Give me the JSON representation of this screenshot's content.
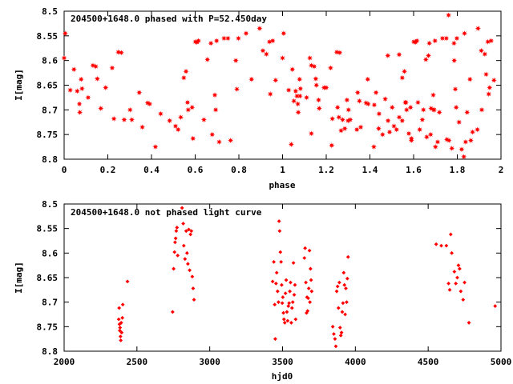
{
  "colors": {
    "points": "#ff0000",
    "axes": "#000000",
    "background": "#ffffff"
  },
  "chart_data": [
    {
      "type": "scatter",
      "title": "204500+1648.0 phased with P=52.450day",
      "xlabel": "phase",
      "ylabel": "I[mag]",
      "xlim": [
        0,
        2
      ],
      "ylim": [
        8.8,
        8.5
      ],
      "y_inverted": true,
      "grid": false,
      "marker": "star",
      "xticks": [
        "0",
        "0.2",
        "0.4",
        "0.6",
        "0.8",
        "1",
        "1.2",
        "1.4",
        "1.6",
        "1.8",
        "2"
      ],
      "yticks": [
        "8.5",
        "8.55",
        "8.6",
        "8.65",
        "8.7",
        "8.75",
        "8.8"
      ],
      "base_points": [
        [
          0.0,
          8.595
        ],
        [
          0.005,
          8.545
        ],
        [
          0.028,
          8.66
        ],
        [
          0.045,
          8.618
        ],
        [
          0.06,
          8.662
        ],
        [
          0.07,
          8.688
        ],
        [
          0.072,
          8.705
        ],
        [
          0.078,
          8.638
        ],
        [
          0.082,
          8.657
        ],
        [
          0.11,
          8.675
        ],
        [
          0.132,
          8.61
        ],
        [
          0.145,
          8.612
        ],
        [
          0.152,
          8.637
        ],
        [
          0.168,
          8.697
        ],
        [
          0.19,
          8.655
        ],
        [
          0.22,
          8.615
        ],
        [
          0.228,
          8.718
        ],
        [
          0.248,
          8.583
        ],
        [
          0.262,
          8.584
        ],
        [
          0.275,
          8.72
        ],
        [
          0.302,
          8.7
        ],
        [
          0.31,
          8.72
        ],
        [
          0.344,
          8.665
        ],
        [
          0.358,
          8.735
        ],
        [
          0.382,
          8.686
        ],
        [
          0.392,
          8.688
        ],
        [
          0.418,
          8.775
        ],
        [
          0.442,
          8.708
        ],
        [
          0.483,
          8.722
        ],
        [
          0.51,
          8.733
        ],
        [
          0.522,
          8.74
        ],
        [
          0.534,
          8.715
        ],
        [
          0.548,
          8.635
        ],
        [
          0.558,
          8.622
        ],
        [
          0.565,
          8.685
        ],
        [
          0.568,
          8.7
        ],
        [
          0.586,
          8.695
        ],
        [
          0.59,
          8.758
        ],
        [
          0.601,
          8.562
        ],
        [
          0.608,
          8.563
        ],
        [
          0.615,
          8.56
        ],
        [
          0.64,
          8.72
        ],
        [
          0.656,
          8.598
        ],
        [
          0.672,
          8.565
        ],
        [
          0.678,
          8.75
        ],
        [
          0.69,
          8.67
        ],
        [
          0.694,
          8.7
        ],
        [
          0.698,
          8.56
        ],
        [
          0.71,
          8.765
        ],
        [
          0.732,
          8.555
        ],
        [
          0.75,
          8.555
        ],
        [
          0.762,
          8.762
        ],
        [
          0.786,
          8.6
        ],
        [
          0.791,
          8.658
        ],
        [
          0.798,
          8.555
        ],
        [
          0.833,
          8.545
        ],
        [
          0.858,
          8.638
        ],
        [
          0.895,
          8.535
        ],
        [
          0.91,
          8.58
        ],
        [
          0.926,
          8.587
        ],
        [
          0.94,
          8.562
        ],
        [
          0.944,
          8.668
        ],
        [
          0.955,
          8.56
        ],
        [
          0.968,
          8.64
        ]
      ],
      "extra_points": [
        [
          1.04,
          8.77
        ],
        [
          1.052,
          8.682
        ],
        [
          1.066,
          8.672
        ],
        [
          1.08,
          8.672
        ],
        [
          1.125,
          8.595
        ],
        [
          1.132,
          8.748
        ],
        [
          1.155,
          8.65
        ],
        [
          1.165,
          8.68
        ],
        [
          1.2,
          8.655
        ],
        [
          1.225,
          8.772
        ],
        [
          1.252,
          8.695
        ],
        [
          1.258,
          8.715
        ],
        [
          1.268,
          8.742
        ],
        [
          1.285,
          8.738
        ],
        [
          1.295,
          8.68
        ],
        [
          1.3,
          8.722
        ],
        [
          1.34,
          8.74
        ],
        [
          1.352,
          8.682
        ],
        [
          1.39,
          8.638
        ],
        [
          1.42,
          8.69
        ],
        [
          1.428,
          8.665
        ],
        [
          1.44,
          8.738
        ],
        [
          1.458,
          8.75
        ],
        [
          1.47,
          8.678
        ],
        [
          1.482,
          8.59
        ],
        [
          1.49,
          8.745
        ],
        [
          1.502,
          8.695
        ],
        [
          1.534,
          8.588
        ],
        [
          1.548,
          8.722
        ],
        [
          1.562,
          8.685
        ],
        [
          1.578,
          8.748
        ],
        [
          1.59,
          8.762
        ],
        [
          1.62,
          8.685
        ],
        [
          1.628,
          8.74
        ],
        [
          1.645,
          8.7
        ],
        [
          1.66,
          8.755
        ],
        [
          1.668,
          8.59
        ],
        [
          1.68,
          8.697
        ],
        [
          1.692,
          8.7
        ],
        [
          1.7,
          8.775
        ],
        [
          1.718,
          8.705
        ],
        [
          1.752,
          8.76
        ],
        [
          1.76,
          8.508
        ],
        [
          1.775,
          8.778
        ],
        [
          1.785,
          8.565
        ],
        [
          1.795,
          8.695
        ],
        [
          1.808,
          8.725
        ],
        [
          1.82,
          8.78
        ],
        [
          1.83,
          8.795
        ],
        [
          1.838,
          8.765
        ],
        [
          1.845,
          8.705
        ],
        [
          1.862,
          8.762
        ],
        [
          1.87,
          8.745
        ],
        [
          1.892,
          8.74
        ],
        [
          1.912,
          8.7
        ],
        [
          1.932,
          8.628
        ],
        [
          1.948,
          8.655
        ]
      ]
    },
    {
      "type": "scatter",
      "title": "204500+1648.0 not phased light curve",
      "xlabel": "hjd0",
      "ylabel": "I[mag]",
      "xlim": [
        2000,
        5000
      ],
      "ylim": [
        8.8,
        8.5
      ],
      "y_inverted": true,
      "grid": false,
      "marker": "diamond",
      "xticks": [
        "2000",
        "2500",
        "3000",
        "3500",
        "4000",
        "4500",
        "5000"
      ],
      "yticks": [
        "8.5",
        "8.55",
        "8.6",
        "8.65",
        "8.7",
        "8.75",
        "8.8"
      ],
      "points": [
        [
          2375,
          8.735
        ],
        [
          2378,
          8.712
        ],
        [
          2380,
          8.745
        ],
        [
          2382,
          8.758
        ],
        [
          2384,
          8.752
        ],
        [
          2387,
          8.77
        ],
        [
          2389,
          8.778
        ],
        [
          2392,
          8.742
        ],
        [
          2395,
          8.762
        ],
        [
          2400,
          8.732
        ],
        [
          2403,
          8.705
        ],
        [
          2435,
          8.658
        ],
        [
          2745,
          8.72
        ],
        [
          2752,
          8.632
        ],
        [
          2758,
          8.598
        ],
        [
          2762,
          8.578
        ],
        [
          2766,
          8.57
        ],
        [
          2770,
          8.555
        ],
        [
          2775,
          8.548
        ],
        [
          2780,
          8.605
        ],
        [
          2810,
          8.508
        ],
        [
          2818,
          8.54
        ],
        [
          2822,
          8.585
        ],
        [
          2830,
          8.612
        ],
        [
          2838,
          8.555
        ],
        [
          2844,
          8.6
        ],
        [
          2850,
          8.622
        ],
        [
          2856,
          8.552
        ],
        [
          2862,
          8.635
        ],
        [
          2868,
          8.562
        ],
        [
          2874,
          8.555
        ],
        [
          2880,
          8.648
        ],
        [
          2886,
          8.672
        ],
        [
          2892,
          8.695
        ],
        [
          3432,
          8.658
        ],
        [
          3440,
          8.618
        ],
        [
          3446,
          8.705
        ],
        [
          3450,
          8.775
        ],
        [
          3455,
          8.662
        ],
        [
          3460,
          8.64
        ],
        [
          3466,
          8.678
        ],
        [
          3472,
          8.7
        ],
        [
          3476,
          8.535
        ],
        [
          3480,
          8.555
        ],
        [
          3485,
          8.598
        ],
        [
          3490,
          8.618
        ],
        [
          3494,
          8.665
        ],
        [
          3498,
          8.702
        ],
        [
          3502,
          8.69
        ],
        [
          3506,
          8.722
        ],
        [
          3510,
          8.735
        ],
        [
          3515,
          8.742
        ],
        [
          3520,
          8.682
        ],
        [
          3525,
          8.655
        ],
        [
          3530,
          8.72
        ],
        [
          3535,
          8.738
        ],
        [
          3540,
          8.708
        ],
        [
          3545,
          8.702
        ],
        [
          3550,
          8.678
        ],
        [
          3555,
          8.66
        ],
        [
          3560,
          8.742
        ],
        [
          3565,
          8.712
        ],
        [
          3570,
          8.7
        ],
        [
          3575,
          8.62
        ],
        [
          3580,
          8.685
        ],
        [
          3585,
          8.665
        ],
        [
          3590,
          8.735
        ],
        [
          3650,
          8.61
        ],
        [
          3655,
          8.59
        ],
        [
          3660,
          8.66
        ],
        [
          3665,
          8.722
        ],
        [
          3668,
          8.69
        ],
        [
          3672,
          8.718
        ],
        [
          3676,
          8.692
        ],
        [
          3680,
          8.672
        ],
        [
          3685,
          8.595
        ],
        [
          3688,
          8.7
        ],
        [
          3692,
          8.632
        ],
        [
          3696,
          8.655
        ],
        [
          3700,
          8.678
        ],
        [
          3845,
          8.75
        ],
        [
          3852,
          8.765
        ],
        [
          3860,
          8.775
        ],
        [
          3866,
          8.79
        ],
        [
          3872,
          8.678
        ],
        [
          3878,
          8.668
        ],
        [
          3884,
          8.712
        ],
        [
          3890,
          8.66
        ],
        [
          3895,
          8.752
        ],
        [
          3900,
          8.768
        ],
        [
          3905,
          8.762
        ],
        [
          3910,
          8.72
        ],
        [
          3915,
          8.702
        ],
        [
          3920,
          8.64
        ],
        [
          3925,
          8.665
        ],
        [
          3930,
          8.725
        ],
        [
          3935,
          8.672
        ],
        [
          3940,
          8.7
        ],
        [
          3945,
          8.652
        ],
        [
          3950,
          8.608
        ],
        [
          4555,
          8.582
        ],
        [
          4590,
          8.585
        ],
        [
          4625,
          8.585
        ],
        [
          4640,
          8.662
        ],
        [
          4648,
          8.675
        ],
        [
          4655,
          8.562
        ],
        [
          4662,
          8.6
        ],
        [
          4680,
          8.638
        ],
        [
          4690,
          8.662
        ],
        [
          4700,
          8.65
        ],
        [
          4708,
          8.625
        ],
        [
          4716,
          8.632
        ],
        [
          4724,
          8.678
        ],
        [
          4740,
          8.695
        ],
        [
          4750,
          8.66
        ],
        [
          4780,
          8.742
        ],
        [
          4960,
          8.708
        ]
      ]
    }
  ]
}
